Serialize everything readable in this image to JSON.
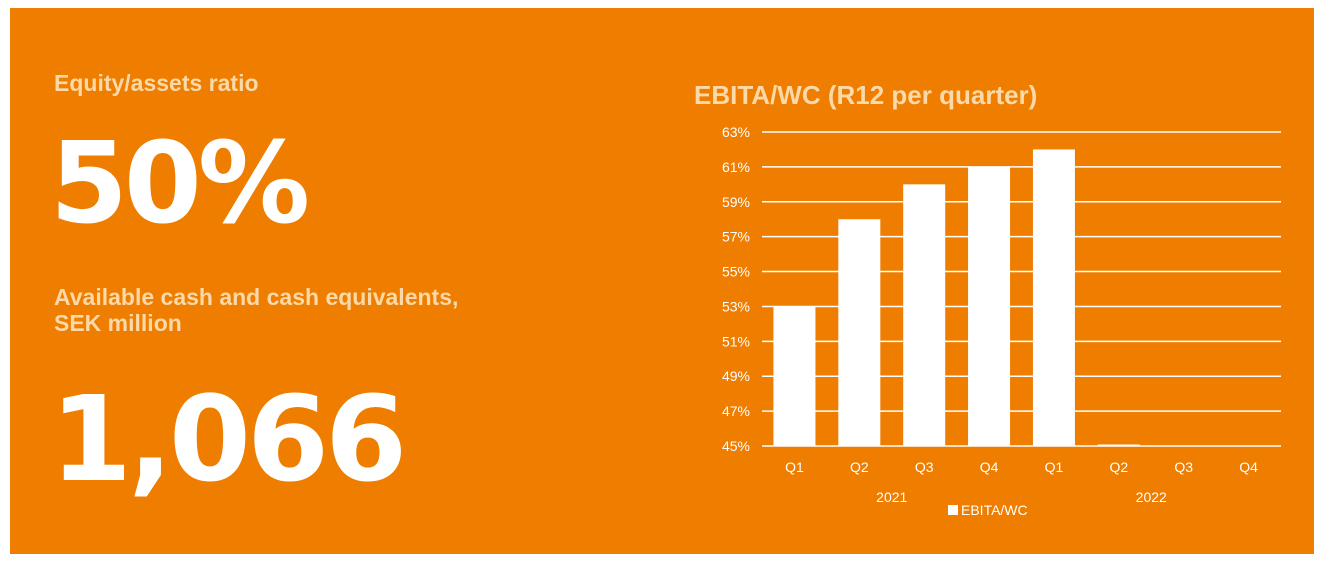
{
  "left": {
    "equity_label": "Equity/assets ratio",
    "equity_value": "50%",
    "cash_label_line1": "Available cash and cash equivalents,",
    "cash_label_line2": "SEK million",
    "cash_value": "1,066"
  },
  "colors": {
    "background": "#EE7D00",
    "label": "#FCD9A8",
    "foreground": "#FFFFFF"
  },
  "chart_data": {
    "type": "bar",
    "title": "EBITA/WC (R12 per quarter)",
    "categories": [
      "Q1",
      "Q2",
      "Q3",
      "Q4",
      "Q1",
      "Q2",
      "Q3",
      "Q4"
    ],
    "groups": [
      "2021",
      "2022"
    ],
    "series": [
      {
        "name": "EBITA/WC",
        "values": [
          53,
          58,
          60,
          61,
          62,
          45,
          null,
          null
        ]
      }
    ],
    "y_ticks": [
      "45%",
      "47%",
      "49%",
      "51%",
      "53%",
      "55%",
      "57%",
      "59%",
      "61%",
      "63%"
    ],
    "ylim": [
      45,
      63
    ],
    "grid": true,
    "legend": "bottom"
  }
}
